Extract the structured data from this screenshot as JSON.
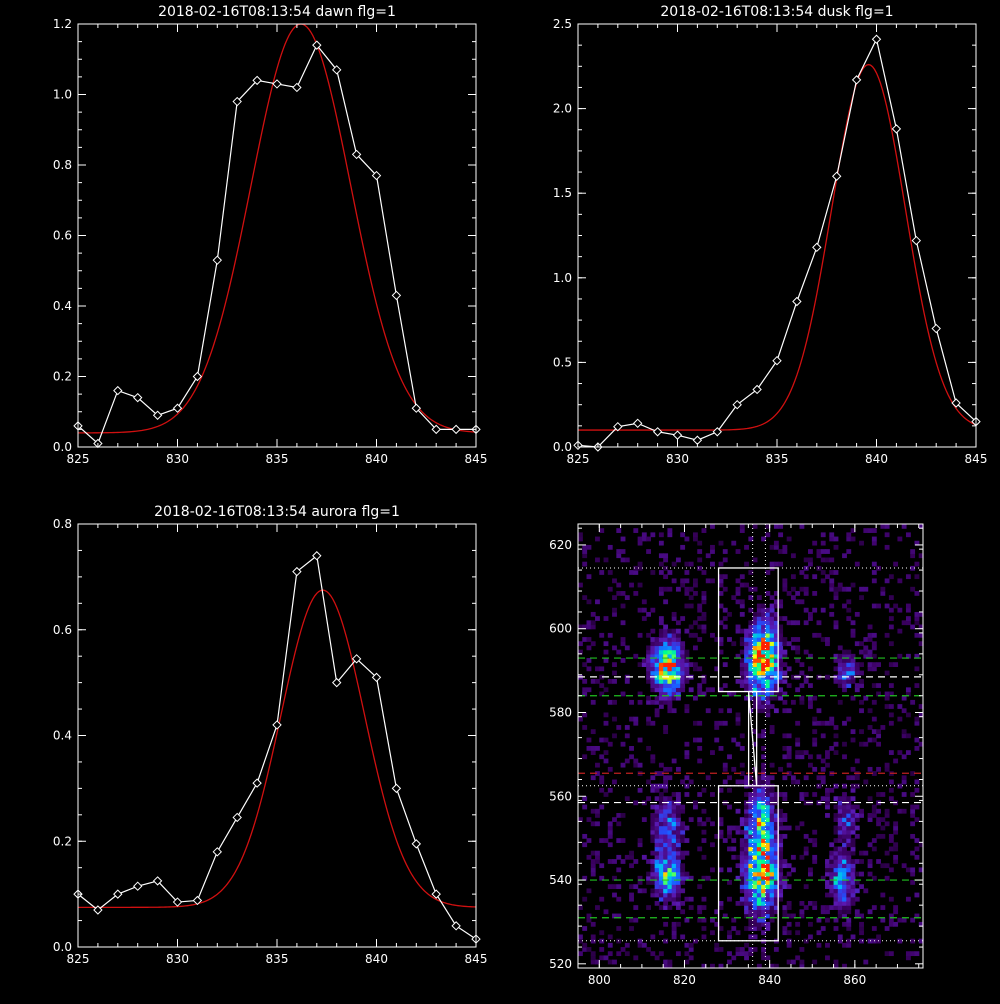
{
  "chart_data": [
    {
      "type": "line",
      "title": "2018-02-16T08:13:54 dawn flg=1",
      "xlim": [
        825,
        845
      ],
      "ylim": [
        0,
        1.2
      ],
      "xticks": [
        825,
        830,
        835,
        840,
        845
      ],
      "xtick_labels": [
        "825",
        "830",
        "835",
        "840",
        "845"
      ],
      "yticks": [
        0.0,
        0.2,
        0.4,
        0.6,
        0.8,
        1.0,
        1.2
      ],
      "ytick_labels": [
        "0.0",
        "0.2",
        "0.4",
        "0.6",
        "0.8",
        "1.0",
        "1.2"
      ],
      "series": [
        {
          "kind": "data",
          "color": "#ffffff",
          "marker": "diamond",
          "x": [
            825,
            826,
            827,
            828,
            829,
            830,
            831,
            832,
            833,
            834,
            835,
            836,
            837,
            838,
            839,
            840,
            841,
            842,
            843,
            844,
            845
          ],
          "y": [
            0.06,
            0.01,
            0.16,
            0.14,
            0.09,
            0.11,
            0.2,
            0.53,
            0.98,
            1.04,
            1.03,
            1.02,
            1.14,
            1.07,
            0.83,
            0.77,
            0.43,
            0.11,
            0.05,
            0.05,
            0.05
          ]
        },
        {
          "kind": "fit",
          "color": "#d01010",
          "gaussian": {
            "amplitude": 1.16,
            "center": 836.2,
            "sigma": 2.5,
            "baseline": 0.04
          }
        }
      ]
    },
    {
      "type": "line",
      "title": "2018-02-16T08:13:54 dusk flg=1",
      "xlim": [
        825,
        845
      ],
      "ylim": [
        0,
        2.5
      ],
      "xticks": [
        825,
        830,
        835,
        840,
        845
      ],
      "xtick_labels": [
        "825",
        "830",
        "835",
        "840",
        "845"
      ],
      "yticks": [
        0.0,
        0.5,
        1.0,
        1.5,
        2.0,
        2.5
      ],
      "ytick_labels": [
        "0.0",
        "0.5",
        "1.0",
        "1.5",
        "2.0",
        "2.5"
      ],
      "series": [
        {
          "kind": "data",
          "color": "#ffffff",
          "marker": "diamond",
          "x": [
            825,
            826,
            827,
            828,
            829,
            830,
            831,
            832,
            833,
            834,
            835,
            836,
            837,
            838,
            839,
            840,
            841,
            842,
            843,
            844,
            845
          ],
          "y": [
            0.01,
            0.0,
            0.12,
            0.14,
            0.09,
            0.07,
            0.04,
            0.09,
            0.25,
            0.34,
            0.51,
            0.86,
            1.18,
            1.6,
            2.17,
            2.41,
            1.88,
            1.22,
            0.7,
            0.26,
            0.15
          ]
        },
        {
          "kind": "fit",
          "color": "#d01010",
          "gaussian": {
            "amplitude": 2.16,
            "center": 839.6,
            "sigma": 1.85,
            "baseline": 0.1
          }
        }
      ]
    },
    {
      "type": "line",
      "title": "2018-02-16T08:13:54 aurora flg=1",
      "xlim": [
        825,
        845
      ],
      "ylim": [
        0,
        0.8
      ],
      "xticks": [
        825,
        830,
        835,
        840,
        845
      ],
      "xtick_labels": [
        "825",
        "830",
        "835",
        "840",
        "845"
      ],
      "yticks": [
        0.0,
        0.2,
        0.4,
        0.6,
        0.8
      ],
      "ytick_labels": [
        "0.0",
        "0.2",
        "0.4",
        "0.6",
        "0.8"
      ],
      "series": [
        {
          "kind": "data",
          "color": "#ffffff",
          "marker": "diamond",
          "x": [
            825,
            826,
            827,
            828,
            829,
            830,
            831,
            832,
            833,
            834,
            835,
            836,
            837,
            838,
            839,
            840,
            841,
            842,
            843,
            844,
            845
          ],
          "y": [
            0.1,
            0.07,
            0.1,
            0.115,
            0.125,
            0.085,
            0.088,
            0.18,
            0.245,
            0.31,
            0.42,
            0.71,
            0.74,
            0.5,
            0.545,
            0.51,
            0.3,
            0.195,
            0.1,
            0.04,
            0.015
          ]
        },
        {
          "kind": "fit",
          "color": "#d01010",
          "gaussian": {
            "amplitude": 0.6,
            "center": 837.3,
            "sigma": 2.1,
            "baseline": 0.075
          }
        }
      ]
    },
    {
      "type": "heatmap",
      "title": "",
      "xlim": [
        795,
        876
      ],
      "ylim": [
        519,
        625
      ],
      "xticks": [
        800,
        820,
        840,
        860
      ],
      "xtick_labels": [
        "800",
        "820",
        "840",
        "860"
      ],
      "yticks": [
        520,
        540,
        560,
        580,
        600,
        620
      ],
      "ytick_labels": [
        "520",
        "540",
        "560",
        "580",
        "600",
        "620"
      ],
      "bin_size": 1,
      "colormap": [
        "#000000",
        "#3a0060",
        "#5a18b0",
        "#2050ff",
        "#00b0ff",
        "#00ff90",
        "#ffff00",
        "#ff2000"
      ],
      "blobs": [
        {
          "x": 816,
          "y": 591,
          "amp": 0.8,
          "sx": 2.5,
          "sy": 4.5
        },
        {
          "x": 838.5,
          "y": 593,
          "amp": 1.0,
          "sx": 2.4,
          "sy": 6.0
        },
        {
          "x": 858,
          "y": 590,
          "amp": 0.35,
          "sx": 1.8,
          "sy": 3.0
        },
        {
          "x": 838,
          "y": 542,
          "amp": 0.85,
          "sx": 2.6,
          "sy": 6.5
        },
        {
          "x": 838,
          "y": 555,
          "amp": 0.55,
          "sx": 2.2,
          "sy": 5.0
        },
        {
          "x": 816,
          "y": 541,
          "amp": 0.55,
          "sx": 2.4,
          "sy": 4.0
        },
        {
          "x": 816,
          "y": 553,
          "amp": 0.35,
          "sx": 2.4,
          "sy": 5.0
        },
        {
          "x": 857,
          "y": 540,
          "amp": 0.45,
          "sx": 2.0,
          "sy": 4.5
        },
        {
          "x": 858,
          "y": 555,
          "amp": 0.3,
          "sx": 2.0,
          "sy": 4.0
        }
      ],
      "noise_level": 0.07,
      "dotted_hlines": [
        614.5,
        562.5,
        525.5
      ],
      "dotted_vlines": [
        836,
        839
      ],
      "dashed_hlines": [
        {
          "y": 593,
          "color": "#20c020"
        },
        {
          "y": 588.5,
          "color": "#ffffff"
        },
        {
          "y": 584,
          "color": "#20c020"
        },
        {
          "y": 565.5,
          "color": "#c02020"
        },
        {
          "y": 558.5,
          "color": "#ffffff"
        },
        {
          "y": 540,
          "color": "#20c020"
        },
        {
          "y": 531,
          "color": "#20c020"
        }
      ],
      "boxes": [
        {
          "x0": 828,
          "x1": 842,
          "y0": 585,
          "y1": 614.5
        },
        {
          "x0": 828,
          "x1": 842,
          "y0": 525.5,
          "y1": 562.5
        }
      ],
      "connector": [
        [
          836,
          585
        ],
        [
          836,
          562.5
        ]
      ],
      "border_color": "#ffffff"
    }
  ]
}
